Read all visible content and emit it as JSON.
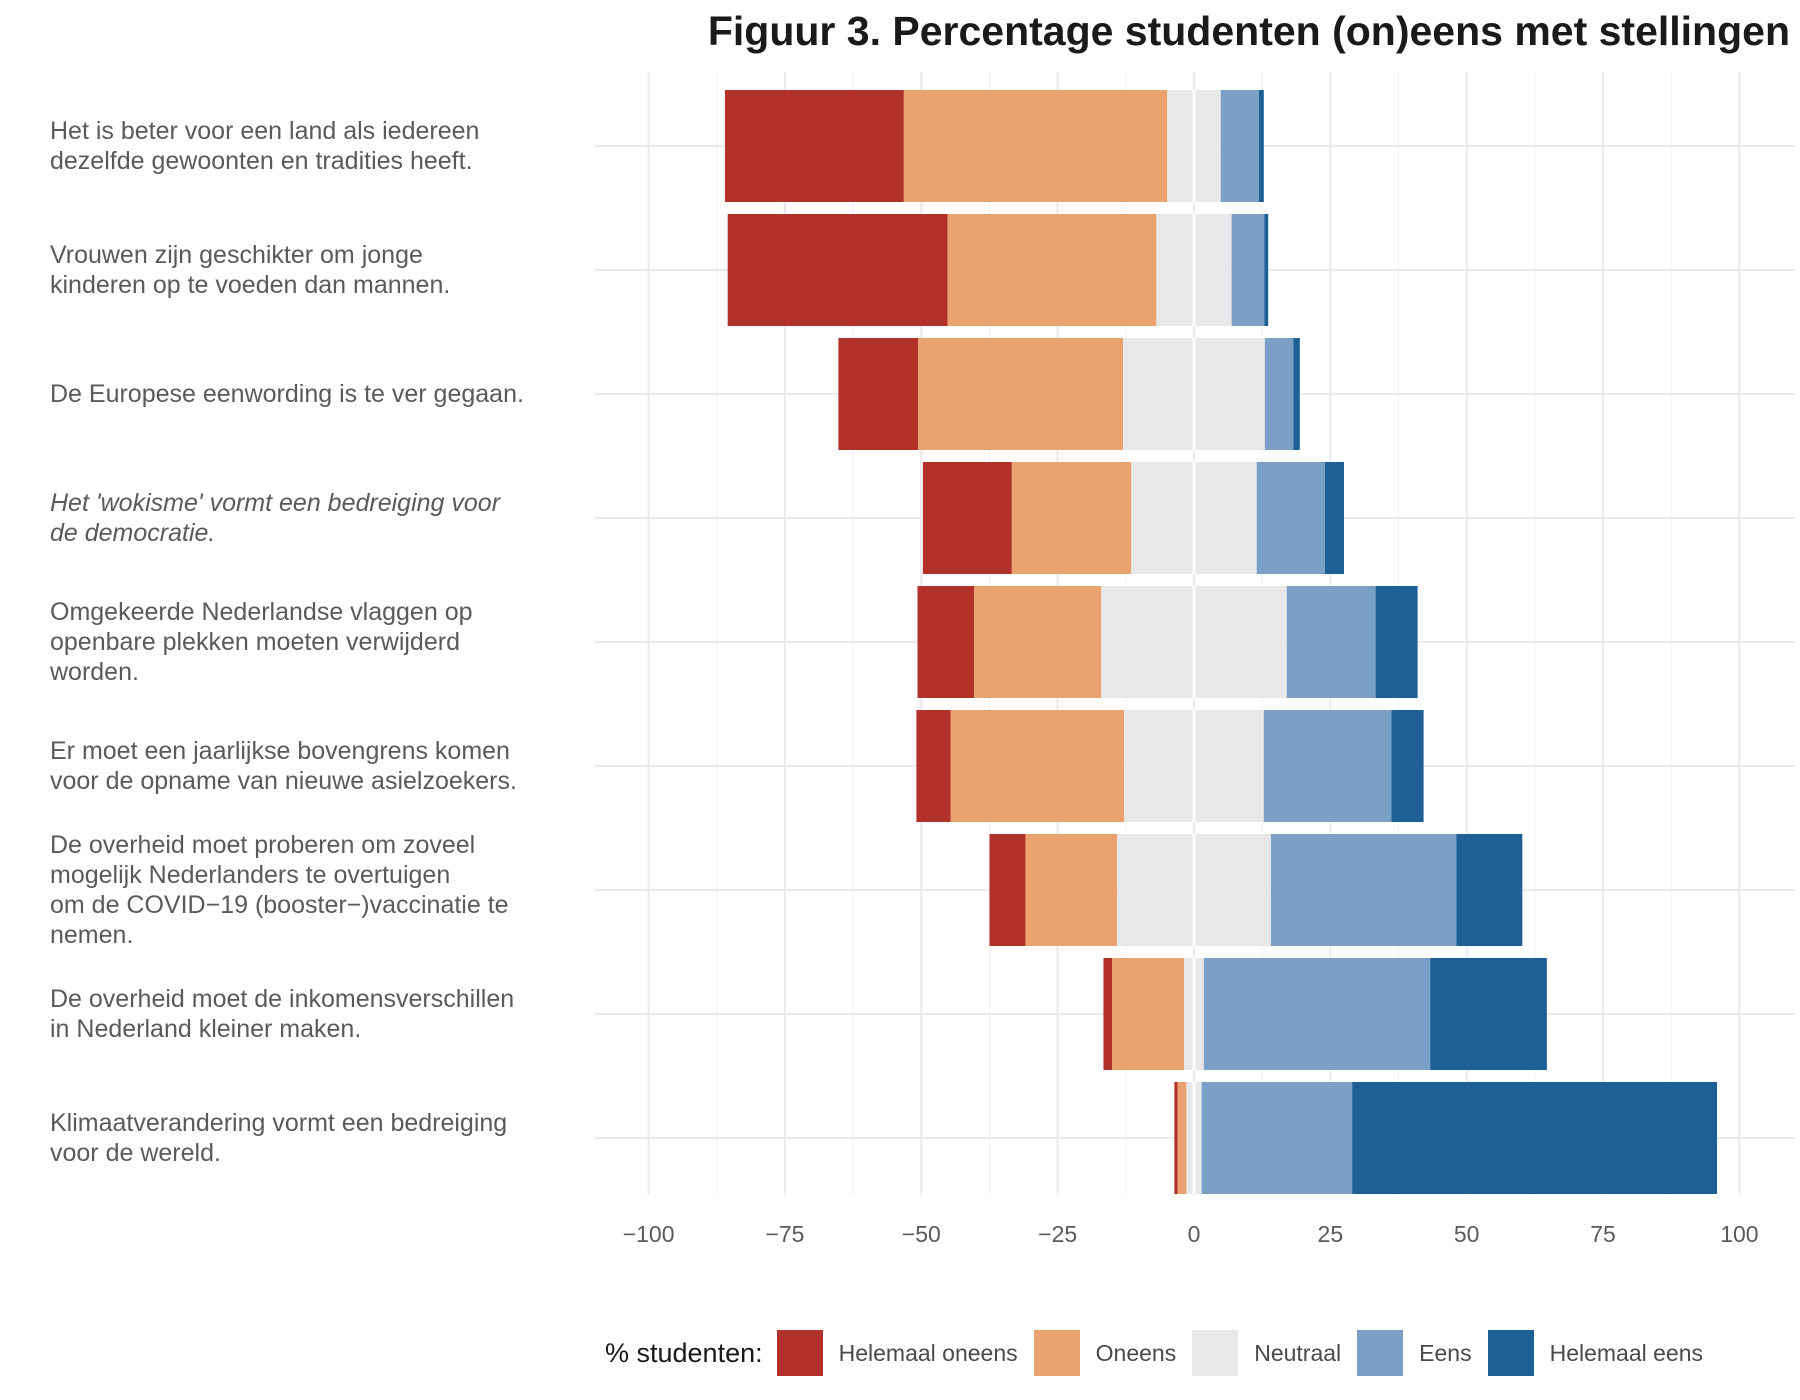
{
  "chart_data": {
    "type": "bar",
    "orientation": "horizontal",
    "stacked": "diverging",
    "title": "Figuur 3. Percentage studenten (on)eens met stellingen",
    "xlim": [
      -105,
      110
    ],
    "xticks": [
      -100,
      -75,
      -50,
      -25,
      0,
      25,
      50,
      75,
      100
    ],
    "xtick_labels": [
      "−100",
      "−75",
      "−50",
      "−25",
      "0",
      "25",
      "50",
      "75",
      "100"
    ],
    "grid": true,
    "legend": {
      "title": "% studenten:",
      "position": "bottom",
      "entries": [
        {
          "label": "Helemaal oneens",
          "color": "#b2312b"
        },
        {
          "label": "Oneens",
          "color": "#eaa26e"
        },
        {
          "label": "Neutraal",
          "color": "#e8e8e8"
        },
        {
          "label": "Eens",
          "color": "#7aa0c6"
        },
        {
          "label": "Helemaal eens",
          "color": "#1e6096"
        }
      ]
    },
    "categories": [
      {
        "label": "Het is beter voor een land als iedereen\ndezelfde gewoonten en tradities heeft.",
        "italic": false
      },
      {
        "label": "Vrouwen zijn geschikter om jonge\nkinderen op te voeden dan mannen.",
        "italic": false
      },
      {
        "label": "De Europese eenwording is te ver gegaan.",
        "italic": false
      },
      {
        "label": "Het 'wokisme' vormt een bedreiging voor\nde democratie.",
        "italic": true
      },
      {
        "label": "Omgekeerde Nederlandse vlaggen op\nopenbare plekken moeten verwijderd\nworden.",
        "italic": false
      },
      {
        "label": "Er moet een jaarlijkse bovengrens komen\nvoor de opname van nieuwe asielzoekers.",
        "italic": false
      },
      {
        "label": "De overheid moet proberen om zoveel\nmogelijk Nederlanders te overtuigen\nom de COVID−19 (booster−)vaccinatie te\nnemen.",
        "italic": false
      },
      {
        "label": "De overheid moet de inkomensverschillen\nin Nederland kleiner maken.",
        "italic": false
      },
      {
        "label": "Klimaatverandering vormt een bedreiging\nvoor de wereld.",
        "italic": false
      }
    ],
    "series": [
      {
        "name": "Helemaal oneens",
        "color": "#b2312b",
        "values": [
          32.8,
          40.3,
          14.6,
          16.3,
          10.4,
          6.3,
          6.6,
          1.6,
          0.6
        ]
      },
      {
        "name": "Oneens",
        "color": "#eaa26e",
        "values": [
          48.3,
          38.3,
          37.6,
          21.9,
          23.3,
          31.8,
          16.8,
          13.2,
          1.6
        ]
      },
      {
        "name": "Neutraal",
        "color": "#e8e8e8",
        "values": [
          9.8,
          13.8,
          26.0,
          23.0,
          34.0,
          25.6,
          28.2,
          3.6,
          2.8
        ]
      },
      {
        "name": "Eens",
        "color": "#7aa0c6",
        "values": [
          7.0,
          6.0,
          5.2,
          12.5,
          16.3,
          23.4,
          34.0,
          41.5,
          27.6
        ]
      },
      {
        "name": "Helemaal eens",
        "color": "#1e6096",
        "values": [
          0.9,
          0.7,
          1.2,
          3.5,
          7.7,
          5.9,
          12.1,
          21.4,
          66.9
        ]
      }
    ]
  }
}
